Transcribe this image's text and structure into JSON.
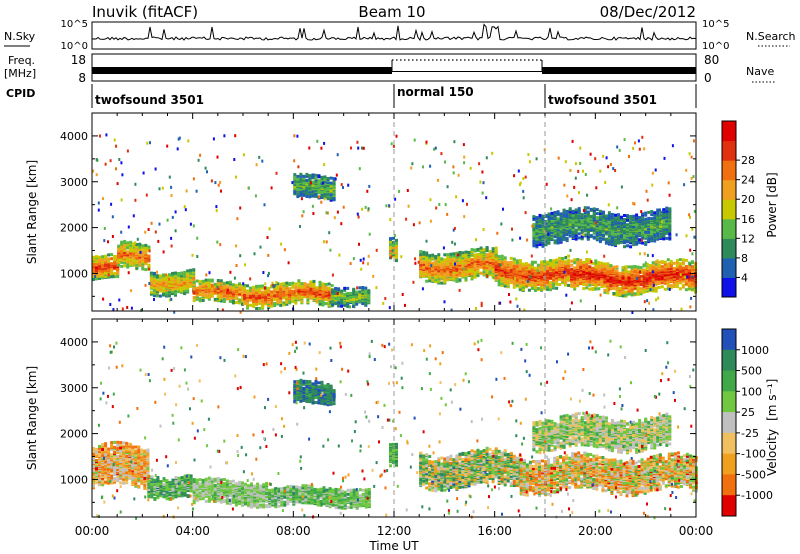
{
  "header": {
    "station": "Inuvik (fitACF)",
    "beam": "Beam 10",
    "date": "08/Dec/2012"
  },
  "noise_panel": {
    "left_label": "N.Sky",
    "right_label": "N.Search",
    "left_ticks": [
      "10^5",
      "10^0"
    ],
    "right_ticks": [
      "10^5",
      "10^0"
    ]
  },
  "freq_panel": {
    "left_label_line1": "Freq.",
    "left_label_line2": "[MHz]",
    "left_ticks": [
      "18",
      "8"
    ],
    "right_ticks": [
      "80",
      "0"
    ],
    "right_label": "Nave",
    "cpid_label": "CPID"
  },
  "cpid_segments": [
    {
      "name": "twofsound 3501",
      "start_hour": 0,
      "end_hour": 12
    },
    {
      "name": "normal 150",
      "start_hour": 12,
      "end_hour": 18
    },
    {
      "name": "twofsound 3501",
      "start_hour": 18,
      "end_hour": 24
    }
  ],
  "chart_data": [
    {
      "type": "heatmap",
      "quantity": "Power",
      "ylabel": "Slant Range [km]",
      "xlim_hours": [
        0,
        24
      ],
      "ylim": [
        180,
        4500
      ],
      "ytick_labels": [
        "1000",
        "2000",
        "3000",
        "4000"
      ],
      "colorbar_label": "Power [dB]",
      "colorbar_ticks": [
        "4",
        "8",
        "12",
        "16",
        "20",
        "24",
        "28"
      ],
      "colorbar_colors": [
        "#1010e8",
        "#2060b0",
        "#2f8a5a",
        "#58b848",
        "#c8c800",
        "#f0a020",
        "#f07010",
        "#e03010",
        "#e00000"
      ],
      "echo_bands": [
        {
          "start_hour": 0.0,
          "end_hour": 1.0,
          "center_km": 1150,
          "half_width_km": 250,
          "level": 0.85
        },
        {
          "start_hour": 1.0,
          "end_hour": 2.3,
          "center_km": 1400,
          "half_width_km": 280,
          "level": 0.75
        },
        {
          "start_hour": 2.3,
          "end_hour": 4.0,
          "center_km": 850,
          "half_width_km": 250,
          "level": 0.65
        },
        {
          "start_hour": 4.0,
          "end_hour": 6.0,
          "center_km": 620,
          "half_width_km": 230,
          "level": 0.75
        },
        {
          "start_hour": 6.0,
          "end_hour": 9.5,
          "center_km": 580,
          "half_width_km": 250,
          "level": 0.8
        },
        {
          "start_hour": 9.5,
          "end_hour": 11.0,
          "center_km": 560,
          "half_width_km": 200,
          "level": 0.45
        },
        {
          "start_hour": 8.0,
          "end_hour": 9.6,
          "center_km": 2900,
          "half_width_km": 250,
          "level": 0.4
        },
        {
          "start_hour": 11.8,
          "end_hour": 12.1,
          "center_km": 1500,
          "half_width_km": 250,
          "level": 0.6
        },
        {
          "start_hour": 13.0,
          "end_hour": 16.0,
          "center_km": 1200,
          "half_width_km": 320,
          "level": 0.75
        },
        {
          "start_hour": 16.0,
          "end_hour": 19.0,
          "center_km": 1050,
          "half_width_km": 330,
          "level": 0.85
        },
        {
          "start_hour": 19.0,
          "end_hour": 24.0,
          "center_km": 950,
          "half_width_km": 330,
          "level": 0.92
        },
        {
          "start_hour": 17.5,
          "end_hour": 23.0,
          "center_km": 2050,
          "half_width_km": 350,
          "level": 0.35
        }
      ]
    },
    {
      "type": "heatmap",
      "quantity": "Velocity",
      "ylabel": "Slant Range [km]",
      "xlabel": "Time UT",
      "xlim_hours": [
        0,
        24
      ],
      "ylim": [
        180,
        4500
      ],
      "xtick_labels": [
        "00:00",
        "04:00",
        "08:00",
        "12:00",
        "16:00",
        "20:00",
        "00:00"
      ],
      "ytick_labels": [
        "1000",
        "2000",
        "3000",
        "4000"
      ],
      "colorbar_label": "Velocity",
      "colorbar_unit": "[m s⁻¹]",
      "colorbar_ticks": [
        "1000",
        "500",
        "100",
        "25",
        "-25",
        "-100",
        "-500",
        "-1000"
      ],
      "colorbar_colors": [
        "#2050b8",
        "#2f8a5a",
        "#40a848",
        "#70c840",
        "#c0c0c0",
        "#f0c060",
        "#f0a020",
        "#f07010",
        "#e00000"
      ],
      "echo_bands": [
        {
          "start_hour": 0.0,
          "end_hour": 2.2,
          "center_km": 1300,
          "half_width_km": 450,
          "mean": 0.35,
          "spread": 0.25
        },
        {
          "start_hour": 2.2,
          "end_hour": 4.0,
          "center_km": 900,
          "half_width_km": 250,
          "mean": 0.7,
          "spread": 0.2
        },
        {
          "start_hour": 4.0,
          "end_hour": 7.0,
          "center_km": 750,
          "half_width_km": 260,
          "mean": 0.57,
          "spread": 0.12
        },
        {
          "start_hour": 7.0,
          "end_hour": 11.0,
          "center_km": 650,
          "half_width_km": 200,
          "mean": 0.65,
          "spread": 0.15
        },
        {
          "start_hour": 8.0,
          "end_hour": 9.6,
          "center_km": 2900,
          "half_width_km": 250,
          "mean": 0.85,
          "spread": 0.1
        },
        {
          "start_hour": 11.8,
          "end_hour": 12.1,
          "center_km": 1500,
          "half_width_km": 250,
          "mean": 0.7,
          "spread": 0.15
        },
        {
          "start_hour": 13.0,
          "end_hour": 17.0,
          "center_km": 1250,
          "half_width_km": 380,
          "mean": 0.55,
          "spread": 0.35
        },
        {
          "start_hour": 17.0,
          "end_hour": 24.0,
          "center_km": 1150,
          "half_width_km": 380,
          "mean": 0.4,
          "spread": 0.3
        },
        {
          "start_hour": 17.5,
          "end_hour": 23.0,
          "center_km": 2050,
          "half_width_km": 350,
          "mean": 0.55,
          "spread": 0.2
        }
      ]
    }
  ]
}
